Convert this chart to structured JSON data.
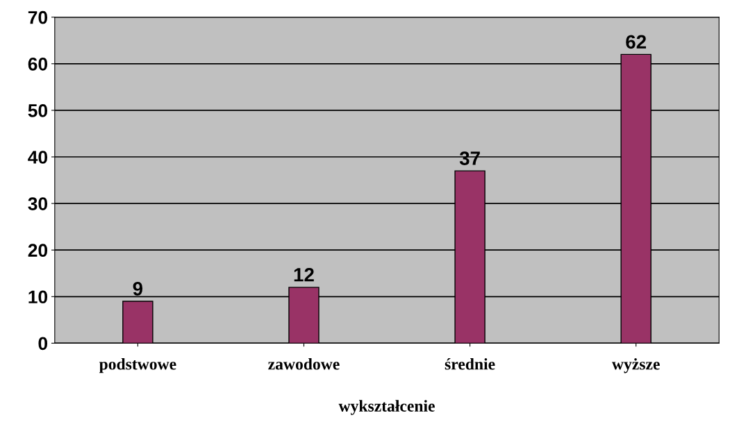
{
  "chart_data": {
    "type": "bar",
    "xlabel": "wykształcenie",
    "categories": [
      "podstwowe",
      "zawodowe",
      "średnie",
      "wyższe"
    ],
    "values": [
      9,
      12,
      37,
      62
    ],
    "color": "#993366",
    "ylim": [
      0,
      70
    ],
    "yticks": [
      0,
      10,
      20,
      30,
      40,
      50,
      60,
      70
    ],
    "grid": "y",
    "data_labels": true
  }
}
